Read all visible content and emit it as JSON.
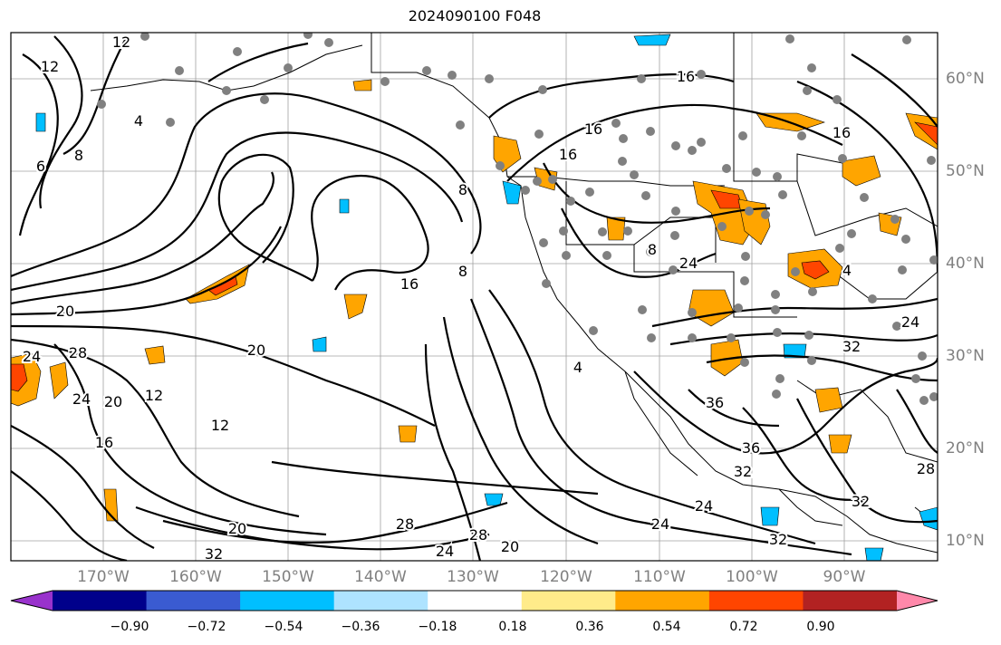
{
  "title": "2024090100 F048",
  "lat_labels": [
    "60°N",
    "50°N",
    "40°N",
    "30°N",
    "20°N",
    "10°N"
  ],
  "lon_labels": [
    "170°W",
    "160°W",
    "150°W",
    "140°W",
    "130°W",
    "120°W",
    "110°W",
    "100°W",
    "90°W"
  ],
  "colorbar": {
    "colors": [
      "#9932cc",
      "#00008b",
      "#3a5bd1",
      "#00bfff",
      "#aee3ff",
      "#ffffff",
      "#ffeb8a",
      "#ffa500",
      "#ff4500",
      "#b22222",
      "#ff88aa"
    ],
    "ticks": [
      "−0.90",
      "−0.72",
      "−0.54",
      "−0.36",
      "−0.18",
      "0.18",
      "0.36",
      "0.54",
      "0.72",
      "0.90"
    ]
  },
  "contour_labels": [
    "12",
    "4",
    "12",
    "6",
    "8",
    "16",
    "16",
    "16",
    "8",
    "8",
    "16",
    "8",
    "4",
    "16",
    "4",
    "20",
    "28",
    "24",
    "20",
    "20",
    "24",
    "12",
    "16",
    "12",
    "20",
    "28",
    "32",
    "24",
    "28",
    "32",
    "20",
    "24",
    "24",
    "36",
    "36",
    "32",
    "32",
    "24",
    "32",
    "28",
    "24"
  ]
}
